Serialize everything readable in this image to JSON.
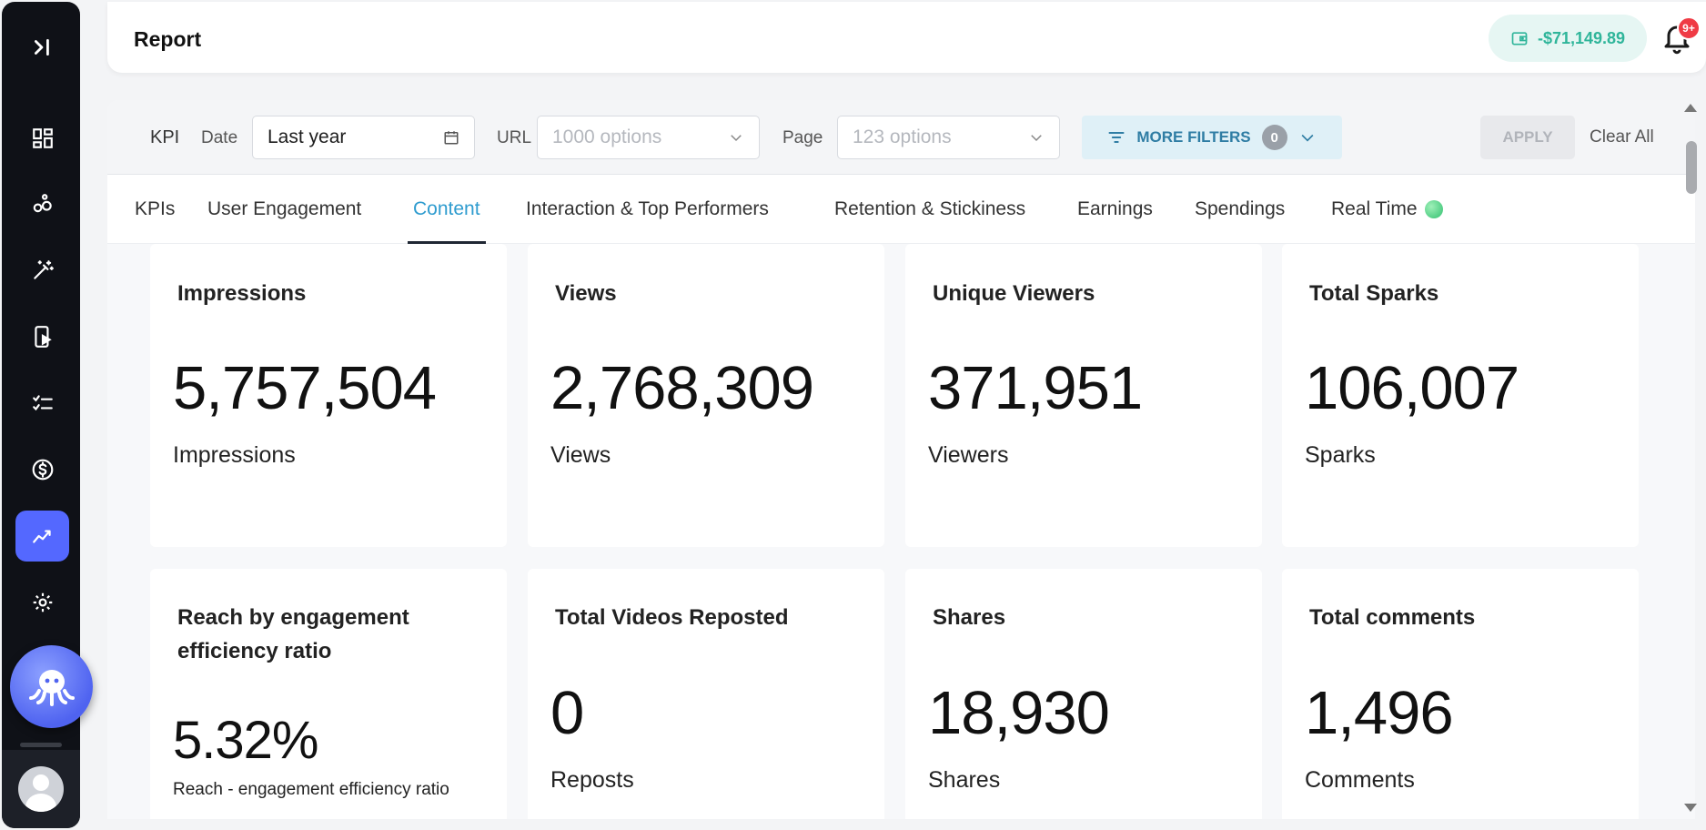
{
  "header": {
    "title": "Report",
    "balance": "-$71,149.89",
    "notification_badge": "9+"
  },
  "sidebar": {
    "items": [
      {
        "name": "expand-icon"
      },
      {
        "name": "dashboard-icon"
      },
      {
        "name": "bubbles-icon"
      },
      {
        "name": "magic-wand-icon"
      },
      {
        "name": "video-phone-icon"
      },
      {
        "name": "checklist-icon"
      },
      {
        "name": "dollar-icon"
      },
      {
        "name": "analytics-icon",
        "active": true
      },
      {
        "name": "gear-icon"
      }
    ]
  },
  "filters": {
    "kpi_label": "KPI",
    "date_label": "Date",
    "date_value": "Last year",
    "url_label": "URL",
    "url_placeholder": "1000 options",
    "page_label": "Page",
    "page_placeholder": "123 options",
    "more_filters_label": "MORE FILTERS",
    "more_filters_count": "0",
    "apply_label": "APPLY",
    "clear_label": "Clear All"
  },
  "tabs": [
    {
      "label": "KPIs"
    },
    {
      "label": "User Engagement"
    },
    {
      "label": "Content",
      "active": true
    },
    {
      "label": "Interaction & Top Performers"
    },
    {
      "label": "Retention & Stickiness"
    },
    {
      "label": "Earnings"
    },
    {
      "label": "Spendings"
    },
    {
      "label": "Real Time"
    }
  ],
  "cards": [
    {
      "title": "Impressions",
      "value": "5,757,504",
      "unit": "Impressions"
    },
    {
      "title": "Views",
      "value": "2,768,309",
      "unit": "Views"
    },
    {
      "title": "Unique Viewers",
      "value": "371,951",
      "unit": "Viewers"
    },
    {
      "title": "Total Sparks",
      "value": "106,007",
      "unit": "Sparks"
    },
    {
      "title": "Reach by engagement efficiency ratio",
      "value": "5.32%",
      "unit": "Reach - engagement efficiency ratio"
    },
    {
      "title": "Total Videos Reposted",
      "value": "0",
      "unit": "Reposts"
    },
    {
      "title": "Shares",
      "value": "18,930",
      "unit": "Shares"
    },
    {
      "title": "Total comments",
      "value": "1,496",
      "unit": "Comments"
    }
  ],
  "colors": {
    "accent": "#2f9ccf",
    "sidebar_active": "#5468ff",
    "balance_text": "#2fb59a",
    "badge": "#ef3b45"
  }
}
